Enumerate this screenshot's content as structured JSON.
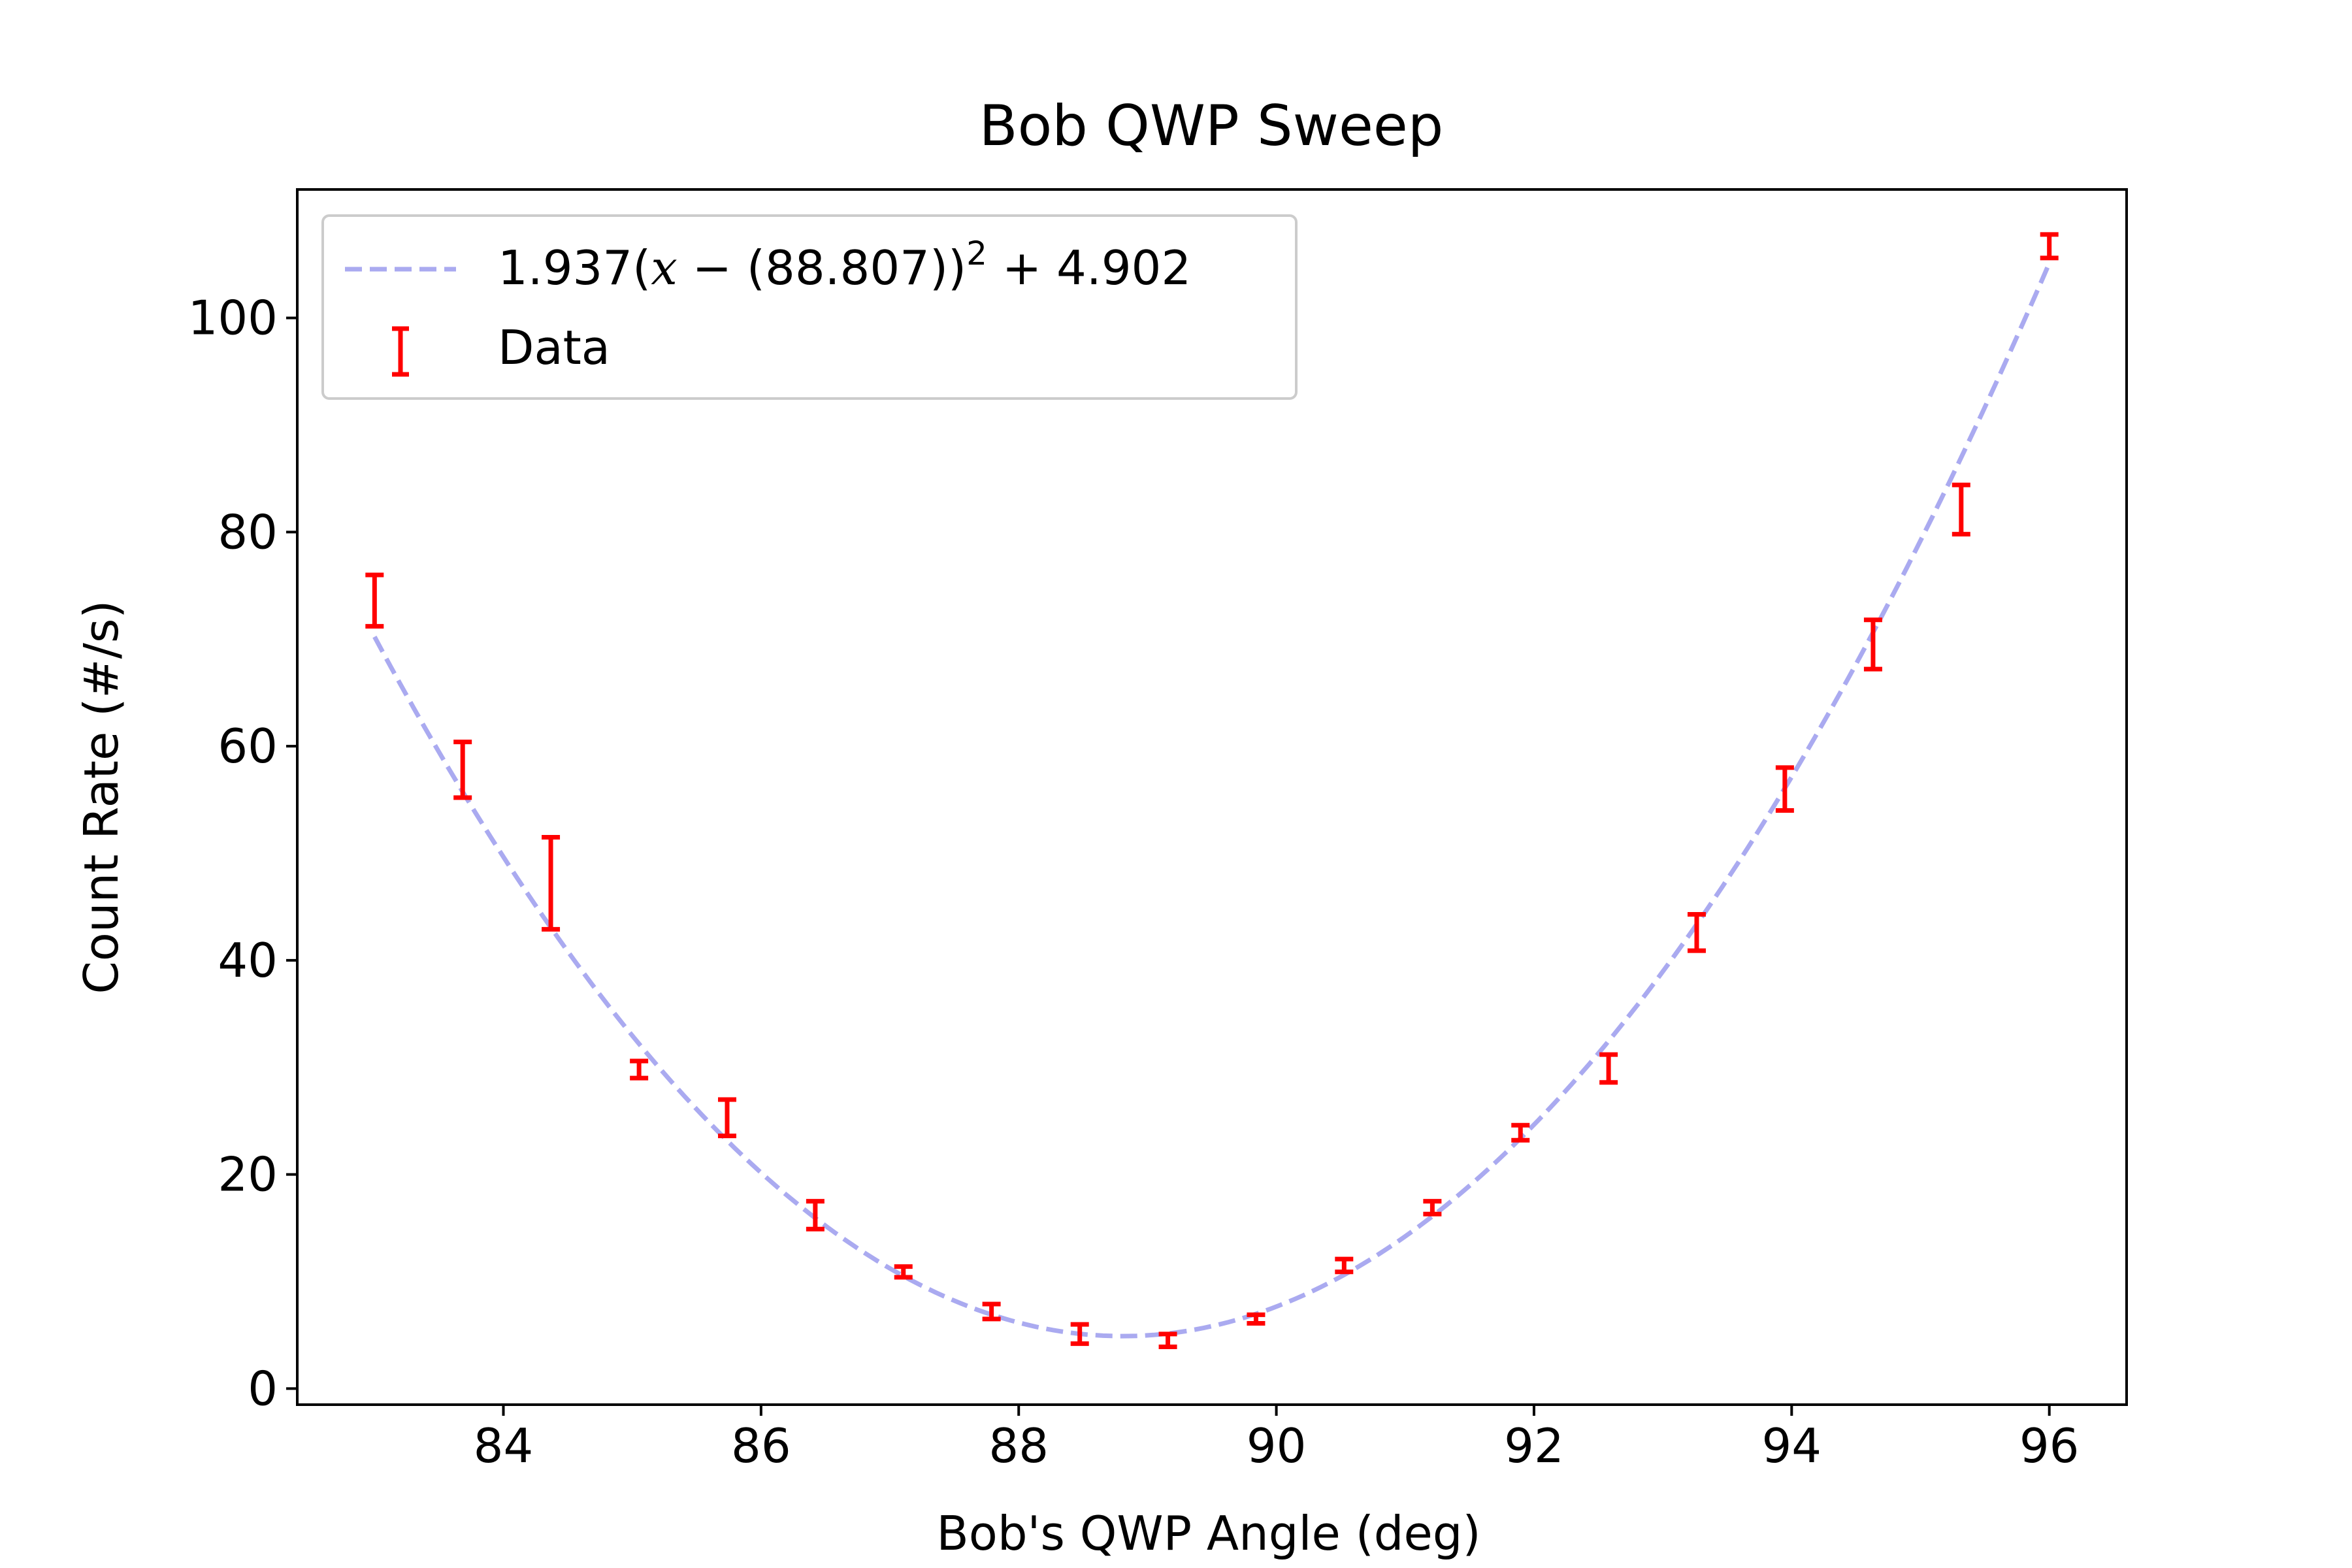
{
  "chart_data": {
    "type": "scatter",
    "title": "Bob QWP Sweep",
    "xlabel": "Bob's QWP Angle (deg)",
    "ylabel": "Count Rate (#/s)",
    "xlim": [
      82.4,
      96.6
    ],
    "ylim": [
      -1.5,
      112
    ],
    "xticks": [
      84,
      86,
      88,
      90,
      92,
      94,
      96
    ],
    "yticks": [
      0,
      20,
      40,
      60,
      80,
      100
    ],
    "grid": false,
    "legend_position": "upper-left",
    "series": [
      {
        "name": "Data",
        "kind": "errorbar",
        "color": "#ff0000",
        "x": [
          83.0,
          83.684,
          84.368,
          85.053,
          85.737,
          86.421,
          87.105,
          87.789,
          88.474,
          89.158,
          89.842,
          90.526,
          91.211,
          91.895,
          92.579,
          93.263,
          93.947,
          94.632,
          95.316,
          96.0
        ],
        "y": [
          73.6,
          57.8,
          47.2,
          29.8,
          25.3,
          16.2,
          10.9,
          7.2,
          5.1,
          4.5,
          6.5,
          11.5,
          16.9,
          23.9,
          29.9,
          42.6,
          56.0,
          69.5,
          82.1,
          106.7
        ],
        "yerr": [
          2.4,
          2.6,
          4.3,
          0.8,
          1.7,
          1.3,
          0.5,
          0.7,
          0.9,
          0.6,
          0.4,
          0.6,
          0.6,
          0.7,
          1.3,
          1.7,
          2.0,
          2.3,
          2.3,
          1.1
        ]
      },
      {
        "name": "1.937(x − (88.807))² + 4.902",
        "kind": "fit-line",
        "color": "#aaaaf0",
        "linestyle": "dashed",
        "a": 1.937,
        "x0": 88.807,
        "c": 4.902,
        "xrange": [
          83.0,
          96.0
        ]
      }
    ]
  },
  "legend": {
    "fit_prefix": "1.937(",
    "fit_x": "x",
    "fit_mid": " − (88.807))",
    "fit_sup": "2",
    "fit_suffix": " + 4.902",
    "data_label": "Data"
  }
}
